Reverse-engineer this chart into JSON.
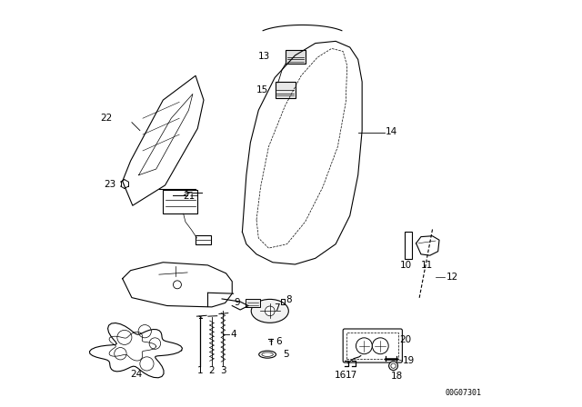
{
  "title": "",
  "background_color": "#ffffff",
  "image_code": "00G07301",
  "fig_width": 6.4,
  "fig_height": 4.48,
  "dpi": 100,
  "line_color": "#000000",
  "text_color": "#000000",
  "font_size": 7.5
}
